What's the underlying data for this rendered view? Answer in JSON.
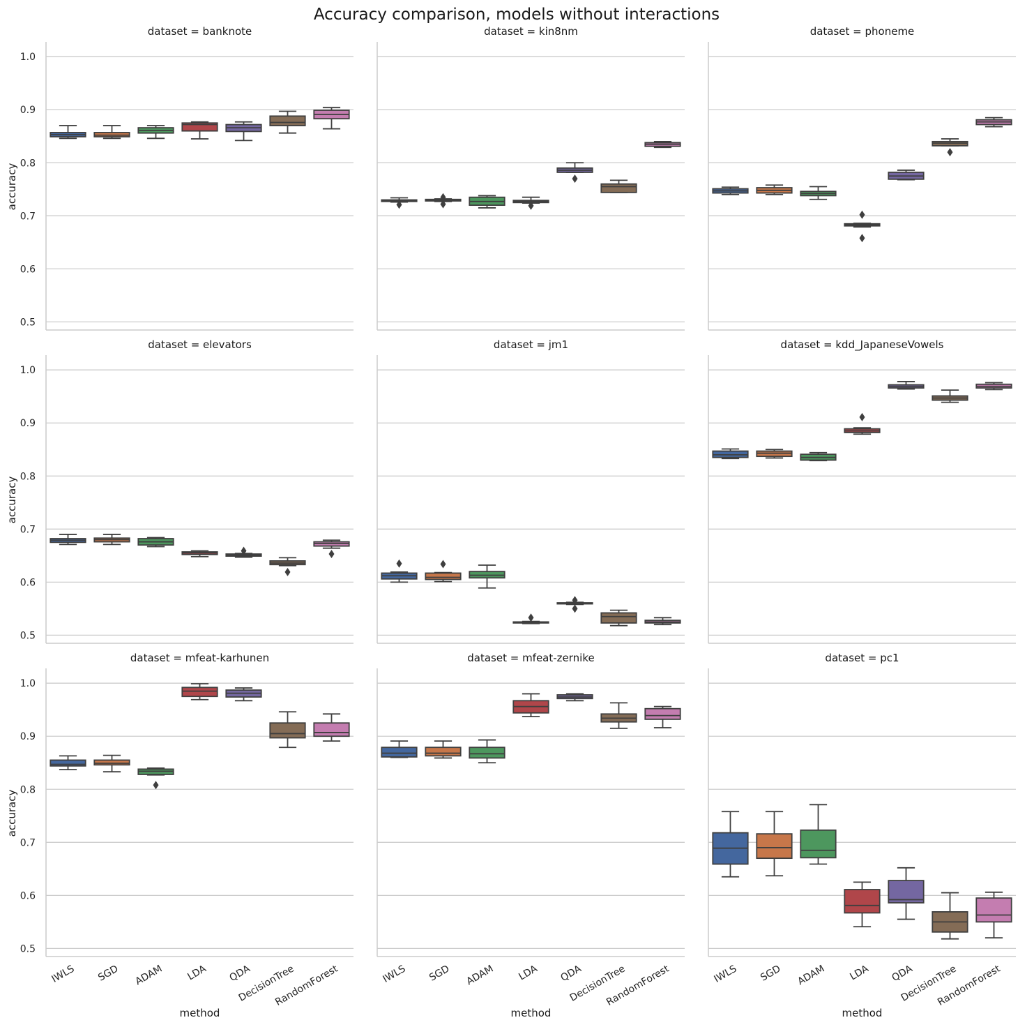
{
  "chart_data": {
    "type": "box",
    "title": "Accuracy comparison, models without interactions",
    "xlabel": "method",
    "ylabel": "accuracy",
    "ylim": [
      0.49,
      1.02
    ],
    "yticks": [
      "0.5",
      "0.6",
      "0.7",
      "0.8",
      "0.9",
      "1.0"
    ],
    "grid": "horizontal",
    "categories": [
      "IWLS",
      "SGD",
      "ADAM",
      "LDA",
      "QDA",
      "DecisionTree",
      "RandomForest"
    ],
    "colors": [
      "#4c72b0",
      "#dd8452",
      "#55a868",
      "#c44e52",
      "#8172b3",
      "#937860",
      "#da8bc3"
    ],
    "panels": [
      {
        "title": "dataset = banknote",
        "boxes": [
          {
            "whislo": 0.846,
            "q1": 0.849,
            "med": 0.853,
            "q3": 0.857,
            "whishi": 0.87,
            "fliers": []
          },
          {
            "whislo": 0.846,
            "q1": 0.849,
            "med": 0.852,
            "q3": 0.857,
            "whishi": 0.87,
            "fliers": []
          },
          {
            "whislo": 0.846,
            "q1": 0.856,
            "med": 0.861,
            "q3": 0.866,
            "whishi": 0.87,
            "fliers": []
          },
          {
            "whislo": 0.845,
            "q1": 0.86,
            "med": 0.872,
            "q3": 0.875,
            "whishi": 0.877,
            "fliers": []
          },
          {
            "whislo": 0.842,
            "q1": 0.859,
            "med": 0.866,
            "q3": 0.872,
            "whishi": 0.877,
            "fliers": []
          },
          {
            "whislo": 0.856,
            "q1": 0.87,
            "med": 0.876,
            "q3": 0.888,
            "whishi": 0.897,
            "fliers": []
          },
          {
            "whislo": 0.864,
            "q1": 0.883,
            "med": 0.891,
            "q3": 0.899,
            "whishi": 0.904,
            "fliers": []
          }
        ]
      },
      {
        "title": "dataset = kin8nm",
        "boxes": [
          {
            "whislo": 0.726,
            "q1": 0.727,
            "med": 0.729,
            "q3": 0.73,
            "whishi": 0.734,
            "fliers": [
              0.721
            ]
          },
          {
            "whislo": 0.727,
            "q1": 0.728,
            "med": 0.729,
            "q3": 0.731,
            "whishi": 0.732,
            "fliers": [
              0.722,
              0.735
            ]
          },
          {
            "whislo": 0.715,
            "q1": 0.72,
            "med": 0.727,
            "q3": 0.735,
            "whishi": 0.738,
            "fliers": []
          },
          {
            "whislo": 0.724,
            "q1": 0.725,
            "med": 0.727,
            "q3": 0.729,
            "whishi": 0.735,
            "fliers": [
              0.719
            ]
          },
          {
            "whislo": 0.782,
            "q1": 0.782,
            "med": 0.786,
            "q3": 0.79,
            "whishi": 0.8,
            "fliers": [
              0.77
            ]
          },
          {
            "whislo": 0.744,
            "q1": 0.744,
            "med": 0.755,
            "q3": 0.76,
            "whishi": 0.767,
            "fliers": []
          },
          {
            "whislo": 0.829,
            "q1": 0.831,
            "med": 0.835,
            "q3": 0.838,
            "whishi": 0.84,
            "fliers": []
          }
        ]
      },
      {
        "title": "dataset = phoneme",
        "boxes": [
          {
            "whislo": 0.74,
            "q1": 0.743,
            "med": 0.747,
            "q3": 0.751,
            "whishi": 0.754,
            "fliers": []
          },
          {
            "whislo": 0.74,
            "q1": 0.743,
            "med": 0.748,
            "q3": 0.753,
            "whishi": 0.758,
            "fliers": []
          },
          {
            "whislo": 0.731,
            "q1": 0.738,
            "med": 0.742,
            "q3": 0.746,
            "whishi": 0.755,
            "fliers": []
          },
          {
            "whislo": 0.679,
            "q1": 0.681,
            "med": 0.683,
            "q3": 0.685,
            "whishi": 0.686,
            "fliers": [
              0.702,
              0.658
            ]
          },
          {
            "whislo": 0.768,
            "q1": 0.769,
            "med": 0.775,
            "q3": 0.782,
            "whishi": 0.786,
            "fliers": []
          },
          {
            "whislo": 0.832,
            "q1": 0.832,
            "med": 0.837,
            "q3": 0.84,
            "whishi": 0.845,
            "fliers": [
              0.82
            ]
          },
          {
            "whislo": 0.868,
            "q1": 0.872,
            "med": 0.877,
            "q3": 0.881,
            "whishi": 0.885,
            "fliers": []
          }
        ]
      },
      {
        "title": "dataset = elevators",
        "boxes": [
          {
            "whislo": 0.671,
            "q1": 0.675,
            "med": 0.679,
            "q3": 0.682,
            "whishi": 0.69,
            "fliers": []
          },
          {
            "whislo": 0.671,
            "q1": 0.676,
            "med": 0.68,
            "q3": 0.683,
            "whishi": 0.69,
            "fliers": []
          },
          {
            "whislo": 0.667,
            "q1": 0.67,
            "med": 0.676,
            "q3": 0.682,
            "whishi": 0.684,
            "fliers": []
          },
          {
            "whislo": 0.648,
            "q1": 0.652,
            "med": 0.655,
            "q3": 0.657,
            "whishi": 0.659,
            "fliers": []
          },
          {
            "whislo": 0.647,
            "q1": 0.649,
            "med": 0.651,
            "q3": 0.653,
            "whishi": 0.654,
            "fliers": [
              0.659
            ]
          },
          {
            "whislo": 0.631,
            "q1": 0.633,
            "med": 0.636,
            "q3": 0.64,
            "whishi": 0.646,
            "fliers": [
              0.619
            ]
          },
          {
            "whislo": 0.664,
            "q1": 0.668,
            "med": 0.673,
            "q3": 0.676,
            "whishi": 0.679,
            "fliers": [
              0.653
            ]
          }
        ]
      },
      {
        "title": "dataset = jm1",
        "boxes": [
          {
            "whislo": 0.6,
            "q1": 0.606,
            "med": 0.612,
            "q3": 0.617,
            "whishi": 0.619,
            "fliers": [
              0.635
            ]
          },
          {
            "whislo": 0.601,
            "q1": 0.605,
            "med": 0.609,
            "q3": 0.617,
            "whishi": 0.618,
            "fliers": [
              0.634
            ]
          },
          {
            "whislo": 0.589,
            "q1": 0.608,
            "med": 0.613,
            "q3": 0.62,
            "whishi": 0.632,
            "fliers": []
          },
          {
            "whislo": 0.522,
            "q1": 0.523,
            "med": 0.524,
            "q3": 0.525,
            "whishi": 0.526,
            "fliers": [
              0.533
            ]
          },
          {
            "whislo": 0.558,
            "q1": 0.559,
            "med": 0.56,
            "q3": 0.561,
            "whishi": 0.562,
            "fliers": [
              0.566,
              0.55
            ]
          },
          {
            "whislo": 0.518,
            "q1": 0.523,
            "med": 0.535,
            "q3": 0.542,
            "whishi": 0.547,
            "fliers": []
          },
          {
            "whislo": 0.52,
            "q1": 0.523,
            "med": 0.525,
            "q3": 0.528,
            "whishi": 0.533,
            "fliers": []
          }
        ]
      },
      {
        "title": "dataset = kdd_JapaneseVowels",
        "boxes": [
          {
            "whislo": 0.833,
            "q1": 0.835,
            "med": 0.84,
            "q3": 0.847,
            "whishi": 0.851,
            "fliers": []
          },
          {
            "whislo": 0.834,
            "q1": 0.837,
            "med": 0.843,
            "q3": 0.847,
            "whishi": 0.85,
            "fliers": []
          },
          {
            "whislo": 0.829,
            "q1": 0.83,
            "med": 0.835,
            "q3": 0.841,
            "whishi": 0.844,
            "fliers": []
          },
          {
            "whislo": 0.879,
            "q1": 0.882,
            "med": 0.885,
            "q3": 0.889,
            "whishi": 0.891,
            "fliers": [
              0.911
            ]
          },
          {
            "whislo": 0.964,
            "q1": 0.966,
            "med": 0.969,
            "q3": 0.972,
            "whishi": 0.978,
            "fliers": []
          },
          {
            "whislo": 0.939,
            "q1": 0.943,
            "med": 0.947,
            "q3": 0.951,
            "whishi": 0.962,
            "fliers": []
          },
          {
            "whislo": 0.963,
            "q1": 0.966,
            "med": 0.969,
            "q3": 0.973,
            "whishi": 0.976,
            "fliers": []
          }
        ]
      },
      {
        "title": "dataset = mfeat-karhunen",
        "boxes": [
          {
            "whislo": 0.837,
            "q1": 0.844,
            "med": 0.847,
            "q3": 0.855,
            "whishi": 0.863,
            "fliers": []
          },
          {
            "whislo": 0.833,
            "q1": 0.846,
            "med": 0.849,
            "q3": 0.855,
            "whishi": 0.864,
            "fliers": []
          },
          {
            "whislo": 0.827,
            "q1": 0.828,
            "med": 0.834,
            "q3": 0.838,
            "whishi": 0.84,
            "fliers": [
              0.808
            ]
          },
          {
            "whislo": 0.969,
            "q1": 0.975,
            "med": 0.985,
            "q3": 0.992,
            "whishi": 0.999,
            "fliers": []
          },
          {
            "whislo": 0.967,
            "q1": 0.974,
            "med": 0.981,
            "q3": 0.987,
            "whishi": 0.991,
            "fliers": []
          },
          {
            "whislo": 0.879,
            "q1": 0.897,
            "med": 0.905,
            "q3": 0.925,
            "whishi": 0.946,
            "fliers": []
          },
          {
            "whislo": 0.891,
            "q1": 0.9,
            "med": 0.907,
            "q3": 0.925,
            "whishi": 0.942,
            "fliers": []
          }
        ]
      },
      {
        "title": "dataset = mfeat-zernike",
        "boxes": [
          {
            "whislo": 0.86,
            "q1": 0.861,
            "med": 0.868,
            "q3": 0.879,
            "whishi": 0.891,
            "fliers": []
          },
          {
            "whislo": 0.859,
            "q1": 0.863,
            "med": 0.868,
            "q3": 0.879,
            "whishi": 0.891,
            "fliers": []
          },
          {
            "whislo": 0.85,
            "q1": 0.859,
            "med": 0.867,
            "q3": 0.879,
            "whishi": 0.893,
            "fliers": []
          },
          {
            "whislo": 0.937,
            "q1": 0.944,
            "med": 0.956,
            "q3": 0.967,
            "whishi": 0.98,
            "fliers": []
          },
          {
            "whislo": 0.967,
            "q1": 0.971,
            "med": 0.974,
            "q3": 0.978,
            "whishi": 0.98,
            "fliers": []
          },
          {
            "whislo": 0.915,
            "q1": 0.927,
            "med": 0.934,
            "q3": 0.942,
            "whishi": 0.963,
            "fliers": []
          },
          {
            "whislo": 0.916,
            "q1": 0.932,
            "med": 0.939,
            "q3": 0.952,
            "whishi": 0.956,
            "fliers": []
          }
        ]
      },
      {
        "title": "dataset = pc1",
        "boxes": [
          {
            "whislo": 0.635,
            "q1": 0.659,
            "med": 0.689,
            "q3": 0.718,
            "whishi": 0.758,
            "fliers": []
          },
          {
            "whislo": 0.637,
            "q1": 0.67,
            "med": 0.69,
            "q3": 0.716,
            "whishi": 0.758,
            "fliers": []
          },
          {
            "whislo": 0.659,
            "q1": 0.671,
            "med": 0.685,
            "q3": 0.723,
            "whishi": 0.771,
            "fliers": []
          },
          {
            "whislo": 0.541,
            "q1": 0.567,
            "med": 0.581,
            "q3": 0.611,
            "whishi": 0.625,
            "fliers": []
          },
          {
            "whislo": 0.555,
            "q1": 0.586,
            "med": 0.592,
            "q3": 0.628,
            "whishi": 0.652,
            "fliers": []
          },
          {
            "whislo": 0.518,
            "q1": 0.531,
            "med": 0.55,
            "q3": 0.569,
            "whishi": 0.605,
            "fliers": []
          },
          {
            "whislo": 0.52,
            "q1": 0.55,
            "med": 0.563,
            "q3": 0.595,
            "whishi": 0.606,
            "fliers": []
          }
        ]
      }
    ]
  }
}
